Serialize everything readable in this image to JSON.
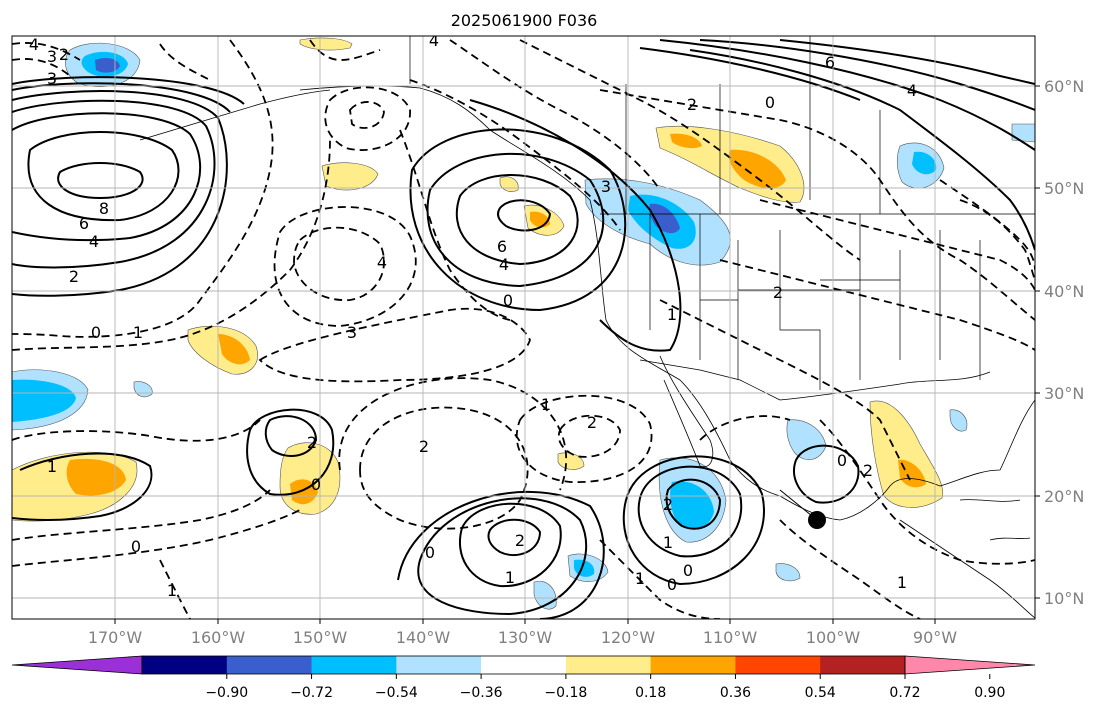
{
  "title": "2025061900 F036",
  "longitude_labels": [
    "170°W",
    "160°W",
    "150°W",
    "140°W",
    "130°W",
    "120°W",
    "110°W",
    "100°W",
    "90°W"
  ],
  "latitude_labels": [
    "60°N",
    "50°N",
    "40°N",
    "30°N",
    "20°N",
    "10°N"
  ],
  "colorbar": {
    "tick_labels": [
      "−0.90",
      "−0.72",
      "−0.54",
      "−0.36",
      "−0.18",
      "0.18",
      "0.36",
      "0.54",
      "0.72",
      "0.90"
    ],
    "colors": [
      "#9b30d9",
      "#000080",
      "#3a5fcd",
      "#00bfff",
      "#b0e2ff",
      "#ffffff",
      "#ffec8b",
      "#ffa500",
      "#ff4500",
      "#b22222",
      "#ff88aa"
    ]
  },
  "contour_labels": [
    "8",
    "6",
    "4",
    "2",
    "0",
    "1",
    "2",
    "3",
    "4",
    "3",
    "4",
    "6",
    "4",
    "0",
    "3",
    "3",
    "6",
    "4",
    "0",
    "2",
    "2",
    "1",
    "4",
    "2",
    "2",
    "1",
    "0",
    "2",
    "2",
    "1",
    "2",
    "1",
    "0",
    "1",
    "0",
    "0",
    "1",
    "2",
    "0",
    "1",
    "1",
    "0"
  ],
  "storm_marker": {
    "symbol": "filled-circle",
    "color": "#000000"
  }
}
